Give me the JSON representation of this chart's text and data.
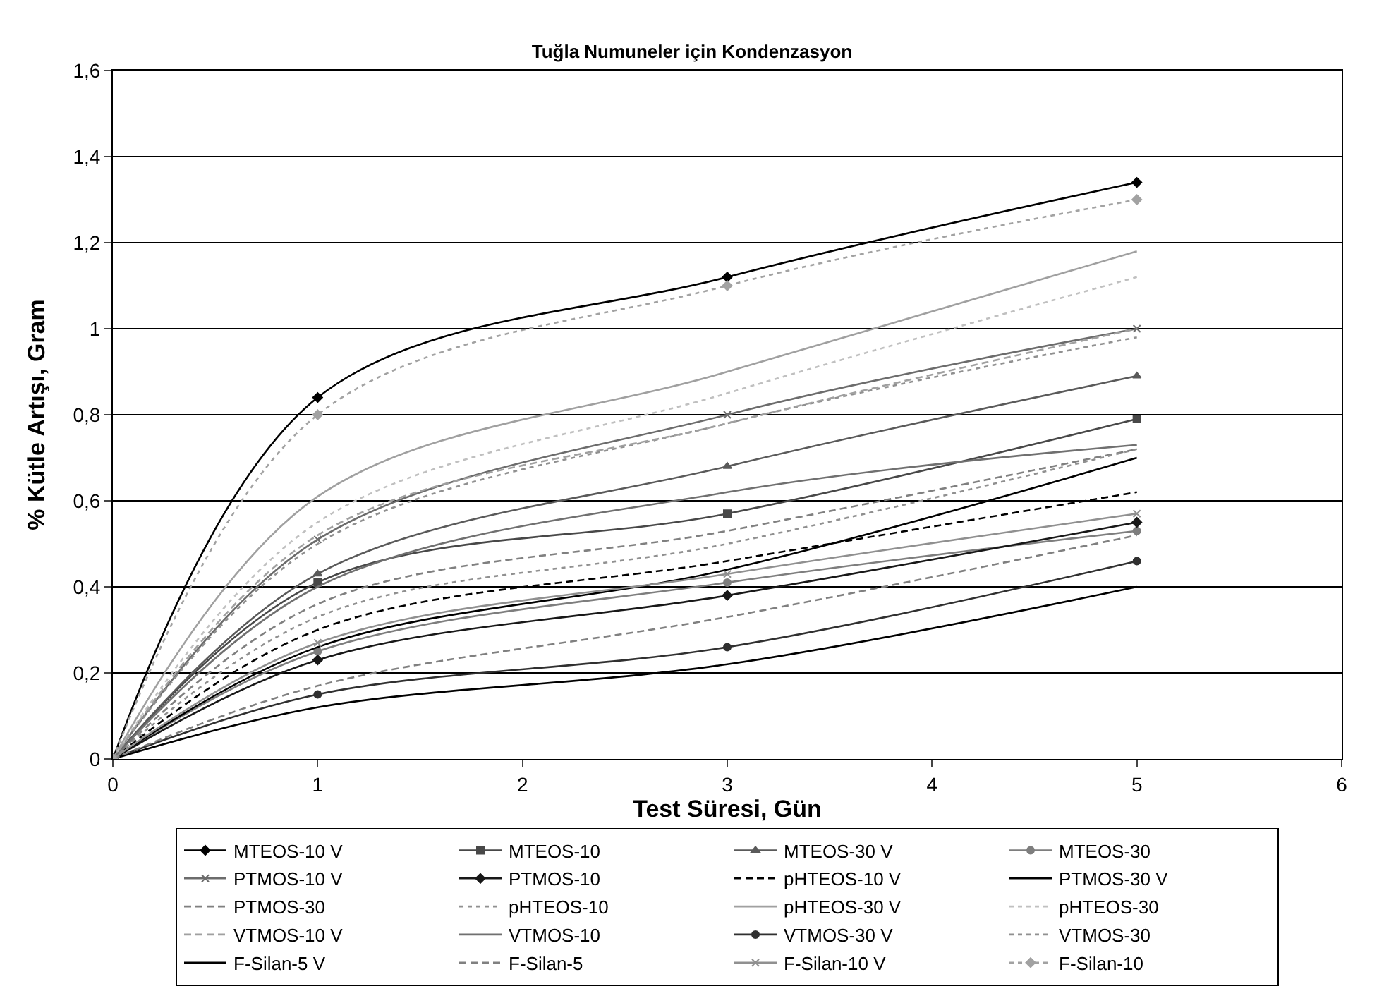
{
  "chart_data": {
    "type": "line",
    "title": "Tuğla Numuneler için Kondenzasyon",
    "xlabel": "Test Süresi, Gün",
    "ylabel": "% Kütle Artışı, Gram",
    "x": [
      0,
      1,
      3,
      5
    ],
    "xlim": [
      0,
      6
    ],
    "xticks": [
      0,
      1,
      2,
      3,
      4,
      5,
      6
    ],
    "ylim": [
      0,
      1.6
    ],
    "yticks": [
      0,
      {
        "value": 0.2,
        "label": "0,2"
      },
      {
        "value": 0.4,
        "label": "0,4"
      },
      {
        "value": 0.6,
        "label": "0,6"
      },
      {
        "value": 0.8,
        "label": "0,8"
      },
      1,
      {
        "value": 1.2,
        "label": "1,2"
      },
      {
        "value": 1.4,
        "label": "1,4"
      },
      {
        "value": 1.6,
        "label": "1,6"
      }
    ],
    "grid": "y",
    "legend": "bottom",
    "series": [
      {
        "name": "MTEOS-10 V",
        "color": "#000000",
        "marker": "diamond",
        "line_style": "solid",
        "values": [
          0,
          0.84,
          1.12,
          1.34
        ]
      },
      {
        "name": "MTEOS-10",
        "color": "#484848",
        "marker": "square",
        "line_style": "solid",
        "values": [
          0,
          0.41,
          0.57,
          0.79
        ]
      },
      {
        "name": "MTEOS-30 V",
        "color": "#5a5a5a",
        "marker": "triangle",
        "line_style": "solid",
        "values": [
          0,
          0.43,
          0.68,
          0.89
        ]
      },
      {
        "name": "MTEOS-30",
        "color": "#7e7e7e",
        "marker": "circle",
        "line_style": "solid",
        "values": [
          0,
          0.25,
          0.41,
          0.53
        ]
      },
      {
        "name": "PTMOS-10 V",
        "color": "#6c6c6c",
        "marker": "cross",
        "line_style": "solid",
        "values": [
          0,
          0.51,
          0.8,
          1.0
        ]
      },
      {
        "name": "PTMOS-10",
        "color": "#181818",
        "marker": "diamond",
        "line_style": "solid",
        "values": [
          0,
          0.23,
          0.38,
          0.55
        ]
      },
      {
        "name": "pHTEOS-10 V",
        "color": "#000000",
        "marker": "none",
        "line_style": "dashed",
        "values": [
          0,
          0.3,
          0.46,
          0.62
        ]
      },
      {
        "name": "PTMOS-30 V",
        "color": "#000000",
        "marker": "none",
        "line_style": "solid",
        "values": [
          0,
          0.26,
          0.44,
          0.7
        ]
      },
      {
        "name": "PTMOS-30",
        "color": "#808080",
        "marker": "none",
        "line_style": "dashed",
        "values": [
          0,
          0.36,
          0.53,
          0.72
        ]
      },
      {
        "name": "pHTEOS-10",
        "color": "#909090",
        "marker": "none",
        "line_style": "dotted",
        "values": [
          0,
          0.5,
          0.78,
          0.98
        ]
      },
      {
        "name": "pHTEOS-30 V",
        "color": "#a0a0a0",
        "marker": "none",
        "line_style": "solid",
        "values": [
          0,
          0.61,
          0.9,
          1.18
        ]
      },
      {
        "name": "pHTEOS-30",
        "color": "#c0c0c0",
        "marker": "none",
        "line_style": "dotted",
        "values": [
          0,
          0.55,
          0.85,
          1.12
        ]
      },
      {
        "name": "VTMOS-10 V",
        "color": "#a0a0a0",
        "marker": "none",
        "line_style": "dashed",
        "values": [
          0,
          0.52,
          0.78,
          1.0
        ]
      },
      {
        "name": "VTMOS-10",
        "color": "#707070",
        "marker": "none",
        "line_style": "solid",
        "values": [
          0,
          0.4,
          0.62,
          0.73
        ]
      },
      {
        "name": "VTMOS-30 V",
        "color": "#303030",
        "marker": "circle",
        "line_style": "solid",
        "values": [
          0,
          0.15,
          0.26,
          0.46
        ]
      },
      {
        "name": "VTMOS-30",
        "color": "#909090",
        "marker": "none",
        "line_style": "dotted",
        "values": [
          0,
          0.33,
          0.5,
          0.72
        ]
      },
      {
        "name": "F-Silan-5 V",
        "color": "#000000",
        "marker": "none",
        "line_style": "solid",
        "values": [
          0,
          0.12,
          0.22,
          0.4
        ]
      },
      {
        "name": "F-Silan-5",
        "color": "#808080",
        "marker": "none",
        "line_style": "dashed",
        "values": [
          0,
          0.17,
          0.33,
          0.52
        ]
      },
      {
        "name": "F-Silan-10 V",
        "color": "#909090",
        "marker": "cross",
        "line_style": "solid",
        "values": [
          0,
          0.27,
          0.43,
          0.57
        ]
      },
      {
        "name": "F-Silan-10",
        "color": "#a2a2a2",
        "marker": "diamond",
        "line_style": "dotted",
        "values": [
          0,
          0.8,
          1.1,
          1.3
        ]
      }
    ]
  }
}
